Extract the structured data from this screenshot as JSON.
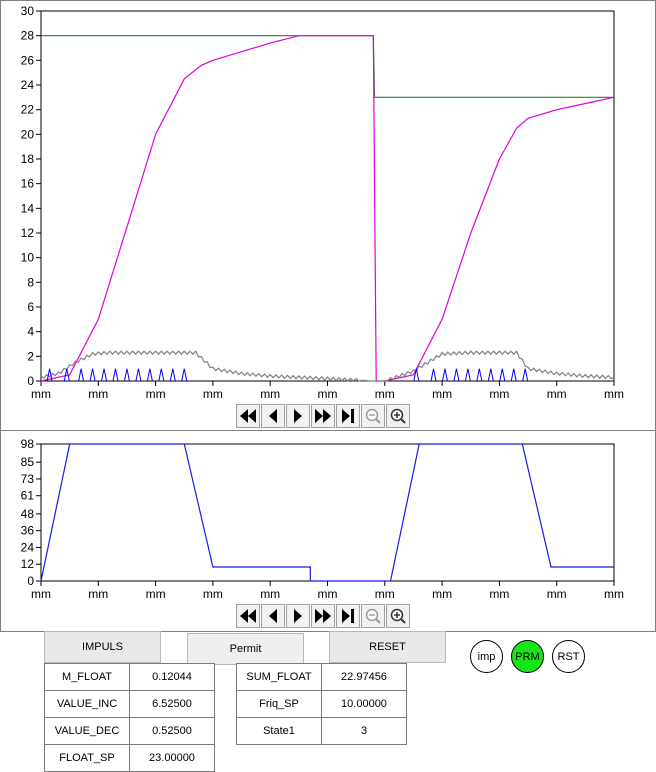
{
  "chart_data": [
    {
      "type": "line",
      "ylim": [
        0,
        30
      ],
      "yticks": [
        0,
        2,
        4,
        6,
        8,
        10,
        12,
        14,
        16,
        18,
        20,
        22,
        24,
        26,
        28,
        30
      ],
      "xtick_labels": [
        "mm",
        "mm",
        "mm",
        "mm",
        "mm",
        "mm",
        "mm",
        "mm",
        "mm",
        "mm",
        "mm"
      ],
      "grid": false,
      "colors": {
        "setpoint": "#2e7d32",
        "float": "#e000e0",
        "rate": "#808080",
        "impulse": "#0000ff"
      },
      "series": [
        {
          "key": "setpoint",
          "x": [
            0,
            5.8,
            5.82,
            10
          ],
          "y": [
            28,
            28,
            23,
            23
          ]
        },
        {
          "key": "float",
          "x": [
            0,
            0.5,
            1.0,
            1.5,
            2.0,
            2.5,
            2.8,
            3.0,
            3.5,
            4.0,
            4.5,
            4.7,
            5.0,
            5.8,
            5.85,
            6.0,
            6.5,
            7.0,
            7.5,
            8.0,
            8.3,
            8.5,
            9.0,
            9.5,
            10.0
          ],
          "y": [
            0,
            0.5,
            5,
            12.5,
            20,
            24.5,
            25.6,
            26,
            26.7,
            27.4,
            28,
            28,
            28,
            28,
            0,
            0,
            0.5,
            5,
            12,
            18,
            20.5,
            21.3,
            22,
            22.5,
            23
          ]
        },
        {
          "key": "rate",
          "x": [
            0,
            0.3,
            0.6,
            0.9,
            1.2,
            2.5,
            2.7,
            3.0,
            3.5,
            4.0,
            4.5,
            5.0,
            5.8,
            6.0,
            6.5,
            7.0,
            7.5,
            8.0,
            8.3,
            8.5,
            9.0,
            9.5,
            10.0
          ],
          "y": [
            0.3,
            0.6,
            1.5,
            2.2,
            2.3,
            2.3,
            2.3,
            1.0,
            0.6,
            0.4,
            0.3,
            0.2,
            0,
            0,
            0.8,
            2.2,
            2.3,
            2.3,
            2.3,
            1.0,
            0.6,
            0.4,
            0.3
          ]
        },
        {
          "key": "impulse",
          "x": [
            0.15,
            0.45,
            0.7,
            0.9,
            1.1,
            1.3,
            1.5,
            1.7,
            1.9,
            2.1,
            2.3,
            2.5,
            6.55,
            6.85,
            7.05,
            7.25,
            7.45,
            7.65,
            7.85,
            8.05,
            8.25,
            8.45
          ],
          "y": [
            1,
            1,
            1,
            1,
            1,
            1,
            1,
            1,
            1,
            1,
            1,
            1,
            1,
            1,
            1,
            1,
            1,
            1,
            1,
            1,
            1,
            1
          ]
        }
      ]
    },
    {
      "type": "line",
      "ylim": [
        0,
        98
      ],
      "yticks": [
        0,
        12,
        24,
        36,
        48,
        61,
        73,
        85,
        98
      ],
      "xtick_labels": [
        "mm",
        "mm",
        "mm",
        "mm",
        "mm",
        "mm",
        "mm",
        "mm",
        "mm",
        "mm",
        "mm"
      ],
      "grid": false,
      "colors": {
        "output": "#1a1ae6"
      },
      "series": [
        {
          "key": "output",
          "x": [
            0,
            0.5,
            2.5,
            3.0,
            4.7,
            4.7,
            6.1,
            6.6,
            8.4,
            8.9,
            10.0
          ],
          "y": [
            0,
            98,
            98,
            10,
            10,
            0,
            0,
            98,
            98,
            10,
            10
          ]
        }
      ]
    }
  ],
  "buttons": {
    "impuls": "IMPULS",
    "permit": "Permit",
    "reset": "RESET"
  },
  "indicators": {
    "imp": "imp",
    "prm": "PRM",
    "rst": "RST",
    "active_color": "#19e619"
  },
  "values_left": [
    {
      "label": "M_FLOAT",
      "value": "0.12044"
    },
    {
      "label": "VALUE_INC",
      "value": "6.52500"
    },
    {
      "label": "VALUE_DEC",
      "value": "0.52500"
    },
    {
      "label": "FLOAT_SP",
      "value": "23.00000"
    }
  ],
  "values_right": [
    {
      "label": "SUM_FLOAT",
      "value": "22.97456"
    },
    {
      "label": "Friq_SP",
      "value": "10.00000"
    },
    {
      "label": "State1",
      "value": "3"
    }
  ],
  "toolbar_icons": [
    "fast-rewind-icon",
    "step-back-icon",
    "play-icon",
    "fast-forward-icon",
    "skip-end-icon",
    "zoom-out-icon",
    "zoom-in-icon"
  ]
}
